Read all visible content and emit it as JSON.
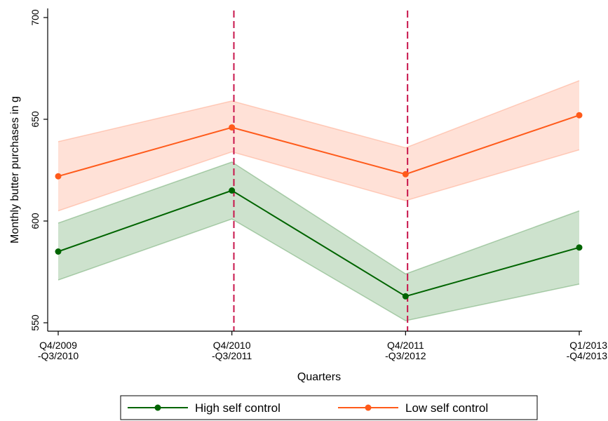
{
  "chart_data": {
    "type": "line",
    "title": "",
    "xlabel": "Quarters",
    "ylabel": "Monthly butter purchases in g",
    "categories": [
      [
        "Q4/2009",
        "-Q3/2010"
      ],
      [
        "Q4/2010",
        "-Q3/2011"
      ],
      [
        "Q4/2011",
        "-Q3/2012"
      ],
      [
        "Q1/2013",
        "-Q4/2013"
      ]
    ],
    "ylim": [
      550,
      700
    ],
    "yticks": [
      550,
      600,
      650,
      700
    ],
    "grid": false,
    "legend_position": "bottom",
    "series": [
      {
        "name": "High self control",
        "color": "#006400",
        "band_color": "#5a9e5a",
        "values": [
          585,
          615,
          563,
          587
        ],
        "ci_lower": [
          571,
          601,
          551,
          569
        ],
        "ci_upper": [
          599,
          629,
          574,
          605
        ]
      },
      {
        "name": "Low self control",
        "color": "#ff5a1a",
        "band_color": "#ff9c7a",
        "values": [
          622,
          646,
          623,
          652
        ],
        "ci_lower": [
          605,
          634,
          610,
          635
        ],
        "ci_upper": [
          639,
          659,
          636,
          669
        ]
      }
    ],
    "reference_lines": {
      "x_positions": [
        1.5,
        2.5
      ],
      "color": "#c8144b",
      "style": "dashed"
    }
  }
}
